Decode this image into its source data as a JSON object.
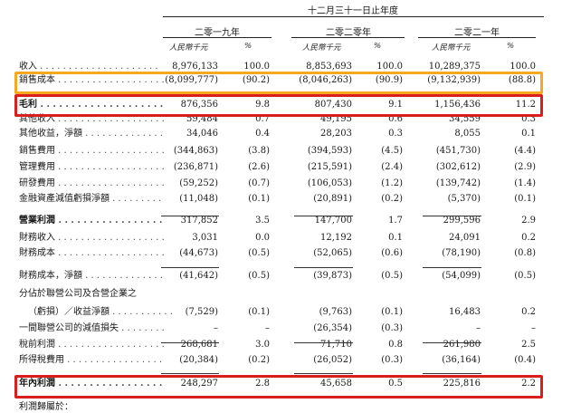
{
  "header": {
    "period": "十二月三十一日止年度",
    "years": [
      "二零一九年",
      "二零二零年",
      "二零二一年"
    ],
    "unit_amount": "人民幣千元",
    "unit_pct": "%"
  },
  "rows": [
    {
      "label": "收入",
      "v": [
        "8,976,133",
        "100.0",
        "8,853,693",
        "100.0",
        "10,289,375",
        "100.0"
      ]
    },
    {
      "label": "銷售成本",
      "v": [
        "(8,099,777)",
        "(90.2)",
        "(8,046,263)",
        "(90.9)",
        "(9,132,939)",
        "(88.8)"
      ]
    },
    {
      "label": "毛利",
      "v": [
        "876,356",
        "9.8",
        "807,430",
        "9.1",
        "1,156,436",
        "11.2"
      ]
    },
    {
      "label": "其他收入",
      "v": [
        "59,484",
        "0.7",
        "49,195",
        "0.6",
        "34,559",
        "0.3"
      ]
    },
    {
      "label": "其他收益，淨額",
      "v": [
        "34,046",
        "0.4",
        "28,203",
        "0.3",
        "8,055",
        "0.1"
      ]
    },
    {
      "label": "銷售費用",
      "v": [
        "(344,863)",
        "(3.8)",
        "(394,593)",
        "(4.5)",
        "(451,730)",
        "(4.4)"
      ]
    },
    {
      "label": "管理費用",
      "v": [
        "(236,871)",
        "(2.6)",
        "(215,591)",
        "(2.4)",
        "(302,612)",
        "(2.9)"
      ]
    },
    {
      "label": "研發費用",
      "v": [
        "(59,252)",
        "(0.7)",
        "(106,053)",
        "(1.2)",
        "(139,742)",
        "(1.4)"
      ]
    },
    {
      "label": "金融資產減值虧損淨額",
      "v": [
        "(11,048)",
        "(0.1)",
        "(20,891)",
        "(0.2)",
        "(5,370)",
        "(0.1)"
      ]
    },
    {
      "label": "營業利潤",
      "v": [
        "317,852",
        "3.5",
        "147,700",
        "1.7",
        "299,596",
        "2.9"
      ]
    },
    {
      "label": "財務收入",
      "v": [
        "3,031",
        "0.0",
        "12,192",
        "0.1",
        "24,091",
        "0.2"
      ]
    },
    {
      "label": "財務成本",
      "v": [
        "(44,673)",
        "(0.5)",
        "(52,065)",
        "(0.6)",
        "(78,190)",
        "(0.8)"
      ]
    },
    {
      "label": "財務成本，淨額",
      "v": [
        "(41,642)",
        "(0.5)",
        "(39,873)",
        "(0.5)",
        "(54,099)",
        "(0.5)"
      ]
    },
    {
      "label": "分佔於聯營公司及合營企業之",
      "v": [
        "",
        "",
        "",
        "",
        "",
        ""
      ]
    },
    {
      "label": "（虧損）／收益淨額",
      "v": [
        "(7,529)",
        "(0.1)",
        "(9,763)",
        "(0.1)",
        "16,483",
        "0.2"
      ]
    },
    {
      "label": "一間聯營公司的減值損失",
      "v": [
        "–",
        "–",
        "(26,354)",
        "(0.3)",
        "–",
        "–"
      ]
    },
    {
      "label": "稅前利潤",
      "v": [
        "268,681",
        "3.0",
        "71,710",
        "0.8",
        "261,980",
        "2.5"
      ]
    },
    {
      "label": "所得稅費用",
      "v": [
        "(20,384)",
        "(0.2)",
        "(26,052)",
        "(0.3)",
        "(36,164)",
        "(0.4)"
      ]
    },
    {
      "label": "年內利潤",
      "v": [
        "248,297",
        "2.8",
        "45,658",
        "0.5",
        "225,816",
        "2.2"
      ]
    }
  ],
  "footer_partial": "利潤歸屬於："
}
